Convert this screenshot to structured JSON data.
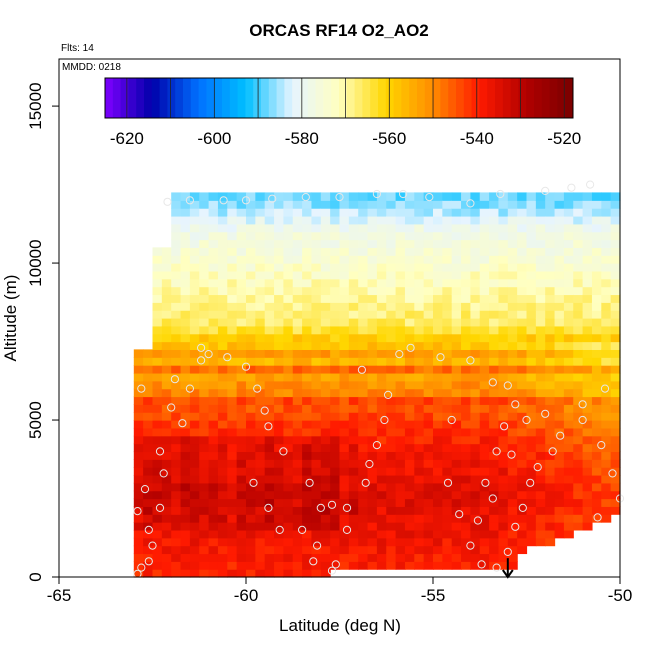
{
  "chart_data": {
    "type": "heatmap",
    "title": "ORCAS RF14 O2_AO2",
    "flights_label": "Flts: 14",
    "date_label": "MMDD: 0218",
    "xlabel": "Latitude (deg N)",
    "ylabel": "Altitude (m)",
    "xlim": [
      -65,
      -50
    ],
    "ylim": [
      0,
      16500
    ],
    "x_ticks": [
      -65,
      -60,
      -55,
      -50
    ],
    "x_tick_labels": [
      "-65",
      "-60",
      "-55",
      "-50"
    ],
    "y_ticks": [
      0,
      5000,
      10000,
      15000
    ],
    "y_tick_labels": [
      "0",
      "5000",
      "10000",
      "15000"
    ],
    "colorbar": {
      "min": -625,
      "max": -518,
      "ticks": [
        -620,
        -600,
        -580,
        -560,
        -540,
        -520
      ],
      "tick_labels": [
        "-620",
        "-600",
        "-580",
        "-560",
        "-540",
        "-520"
      ],
      "colors": [
        "#7f00ff",
        "#0000aa",
        "#0070ff",
        "#00bfff",
        "#e6f4ff",
        "#ffffc0",
        "#ffd700",
        "#ff8c00",
        "#ff1a00",
        "#b00000",
        "#7a0000"
      ]
    },
    "field_extent": {
      "lat_min": -63.0,
      "lat_max": -50.0,
      "alt_min": 0,
      "alt_max": 12500
    },
    "field_profile": [
      {
        "alt": 0,
        "value": -540
      },
      {
        "alt": 1000,
        "value": -538
      },
      {
        "alt": 2500,
        "value": -535
      },
      {
        "alt": 4000,
        "value": -538
      },
      {
        "alt": 5500,
        "value": -545
      },
      {
        "alt": 6800,
        "value": -552
      },
      {
        "alt": 7600,
        "value": -559
      },
      {
        "alt": 8000,
        "value": -566
      },
      {
        "alt": 9500,
        "value": -572
      },
      {
        "alt": 11000,
        "value": -578
      },
      {
        "alt": 12000,
        "value": -588
      }
    ],
    "flight_track": [
      [
        -62.9,
        100
      ],
      [
        -62.8,
        300
      ],
      [
        -62.6,
        500
      ],
      [
        -62.5,
        1000
      ],
      [
        -62.6,
        1500
      ],
      [
        -62.9,
        2100
      ],
      [
        -62.7,
        2800
      ],
      [
        -62.2,
        3300
      ],
      [
        -62.3,
        4000
      ],
      [
        -61.7,
        4900
      ],
      [
        -62.0,
        5400
      ],
      [
        -61.5,
        6000
      ],
      [
        -61.2,
        6900
      ],
      [
        -61.0,
        7100
      ],
      [
        -60.5,
        7000
      ],
      [
        -60.0,
        6700
      ],
      [
        -59.7,
        6000
      ],
      [
        -59.5,
        5300
      ],
      [
        -59.4,
        4800
      ],
      [
        -59.0,
        4000
      ],
      [
        -59.8,
        3000
      ],
      [
        -58.3,
        3000
      ],
      [
        -58.0,
        2200
      ],
      [
        -58.5,
        1500
      ],
      [
        -58.1,
        1000
      ],
      [
        -58.2,
        500
      ],
      [
        -57.7,
        200
      ],
      [
        -57.3,
        1500
      ],
      [
        -57.3,
        2200
      ],
      [
        -56.8,
        3000
      ],
      [
        -56.7,
        3600
      ],
      [
        -56.5,
        4200
      ],
      [
        -56.3,
        5000
      ],
      [
        -56.2,
        5800
      ],
      [
        -55.9,
        7100
      ],
      [
        -55.6,
        7300
      ],
      [
        -54.8,
        7000
      ],
      [
        -54.0,
        6900
      ],
      [
        -53.4,
        6200
      ],
      [
        -53.0,
        6100
      ],
      [
        -52.8,
        5500
      ],
      [
        -52.5,
        5000
      ],
      [
        -53.3,
        4000
      ],
      [
        -53.6,
        3000
      ],
      [
        -53.4,
        2500
      ],
      [
        -53.8,
        1800
      ],
      [
        -54.0,
        1000
      ],
      [
        -53.7,
        400
      ],
      [
        -53.3,
        300
      ],
      [
        -53.0,
        800
      ],
      [
        -52.8,
        1600
      ],
      [
        -52.6,
        2200
      ],
      [
        -52.4,
        3000
      ],
      [
        -52.2,
        3500
      ],
      [
        -51.8,
        4000
      ],
      [
        -51.6,
        4500
      ],
      [
        -51.0,
        5000
      ],
      [
        -50.5,
        4200
      ],
      [
        -50.2,
        3300
      ],
      [
        -50.0,
        2500
      ],
      [
        -50.6,
        1900
      ],
      [
        -51.0,
        5500
      ],
      [
        -50.4,
        6000
      ],
      [
        -50.8,
        12500
      ],
      [
        -51.3,
        12400
      ],
      [
        -52.0,
        12300
      ],
      [
        -53.2,
        12200
      ],
      [
        -54.0,
        11900
      ],
      [
        -55.1,
        12100
      ],
      [
        -55.8,
        12200
      ],
      [
        -56.5,
        12200
      ],
      [
        -57.5,
        12100
      ],
      [
        -58.4,
        12100
      ],
      [
        -59.3,
        12050
      ],
      [
        -60.0,
        12000
      ],
      [
        -60.6,
        12000
      ],
      [
        -61.5,
        12000
      ],
      [
        -62.1,
        11950
      ],
      [
        -61.2,
        7300
      ],
      [
        -61.9,
        6300
      ],
      [
        -62.8,
        6000
      ],
      [
        -62.3,
        2200
      ],
      [
        -59.4,
        2200
      ],
      [
        -59.1,
        1500
      ],
      [
        -57.6,
        400
      ],
      [
        -54.6,
        3000
      ],
      [
        -54.3,
        2000
      ],
      [
        -54.5,
        5000
      ],
      [
        -52.9,
        3900
      ],
      [
        -52.0,
        5200
      ],
      [
        -53.1,
        4800
      ],
      [
        -56.9,
        6600
      ],
      [
        -57.7,
        2300
      ]
    ],
    "arrow": {
      "lat": -53.0,
      "alt_from": 600,
      "alt_to": 0
    }
  }
}
